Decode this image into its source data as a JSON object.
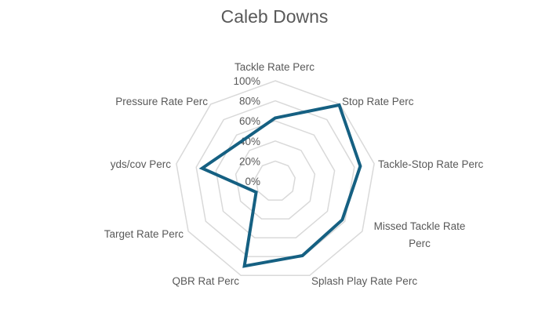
{
  "chart_data": {
    "type": "radar",
    "title": "Caleb Downs",
    "categories": [
      "Tackle Rate Perc",
      "Stop Rate Perc",
      "Tackle-Stop Rate Perc",
      "Missed Tackle Rate Perc",
      "Splash Play Rate Perc",
      "QBR Rat Perc",
      "Target Rate Perc",
      "yds/cov Perc",
      "Pressure Rate Perc"
    ],
    "series": [
      {
        "name": "Caleb Downs",
        "values": [
          63,
          99,
          86,
          77,
          79,
          90,
          22,
          74,
          52
        ],
        "color": "#156082"
      }
    ],
    "radial_ticks": [
      "0%",
      "20%",
      "40%",
      "60%",
      "80%",
      "100%"
    ],
    "rlim": [
      0,
      100
    ],
    "grid": true,
    "legend": "none",
    "colors": {
      "line": "#156082",
      "grid": "#D9D9D9",
      "text": "#595959"
    }
  }
}
